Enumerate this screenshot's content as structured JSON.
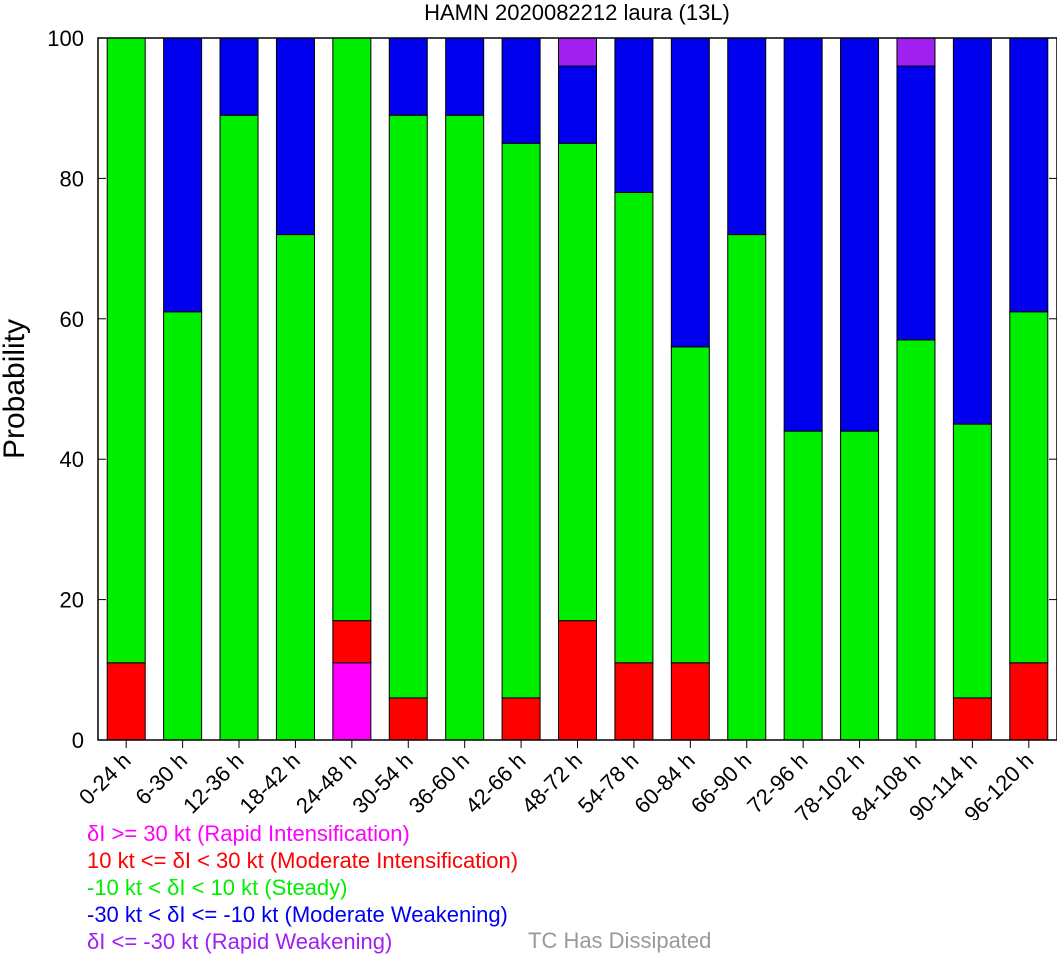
{
  "chart_data": {
    "type": "bar",
    "stacked": true,
    "title": "HAMN 2020082212 laura (13L)",
    "ylabel": "Probability",
    "xlabel": "",
    "ylim": [
      0,
      100
    ],
    "yticks": [
      0,
      20,
      40,
      60,
      80,
      100
    ],
    "categories": [
      "0-24 h",
      "6-30 h",
      "12-36 h",
      "18-42 h",
      "24-48 h",
      "30-54 h",
      "36-60 h",
      "42-66 h",
      "48-72 h",
      "54-78 h",
      "60-84 h",
      "66-90 h",
      "72-96 h",
      "78-102 h",
      "84-108 h",
      "90-114 h",
      "96-120 h"
    ],
    "series": [
      {
        "key": "ri",
        "color": "#ff00ff",
        "values": [
          0,
          0,
          0,
          0,
          11,
          0,
          0,
          0,
          0,
          0,
          0,
          0,
          0,
          0,
          0,
          0,
          0
        ]
      },
      {
        "key": "mi",
        "color": "#ff0000",
        "values": [
          11,
          0,
          0,
          0,
          6,
          6,
          0,
          6,
          17,
          11,
          11,
          0,
          0,
          0,
          0,
          6,
          11
        ]
      },
      {
        "key": "steady",
        "color": "#00ee00",
        "values": [
          89,
          61,
          89,
          72,
          83,
          83,
          89,
          79,
          68,
          67,
          45,
          72,
          44,
          44,
          57,
          39,
          50
        ]
      },
      {
        "key": "mw",
        "color": "#0000ee",
        "values": [
          0,
          39,
          11,
          28,
          0,
          11,
          11,
          15,
          11,
          22,
          44,
          28,
          56,
          56,
          39,
          55,
          39
        ]
      },
      {
        "key": "rw",
        "color": "#a020f0",
        "values": [
          0,
          0,
          0,
          0,
          0,
          0,
          0,
          0,
          4,
          0,
          0,
          0,
          0,
          0,
          4,
          0,
          0
        ]
      }
    ]
  },
  "legend": {
    "ri": {
      "text": "δI >= 30 kt (Rapid Intensification)",
      "color": "#ff00ff"
    },
    "mi": {
      "text": "10 kt <= δI < 30 kt (Moderate Intensification)",
      "color": "#ff0000"
    },
    "steady": {
      "text": "-10 kt < δI < 10 kt (Steady)",
      "color": "#00ee00"
    },
    "mw": {
      "text": "-30 kt < δI <= -10 kt (Moderate Weakening)",
      "color": "#0000ee"
    },
    "rw": {
      "text": "δI <= -30 kt (Rapid Weakening)",
      "color": "#a020f0"
    },
    "dissipated": {
      "text": "TC Has Dissipated",
      "color": "#999999"
    }
  }
}
